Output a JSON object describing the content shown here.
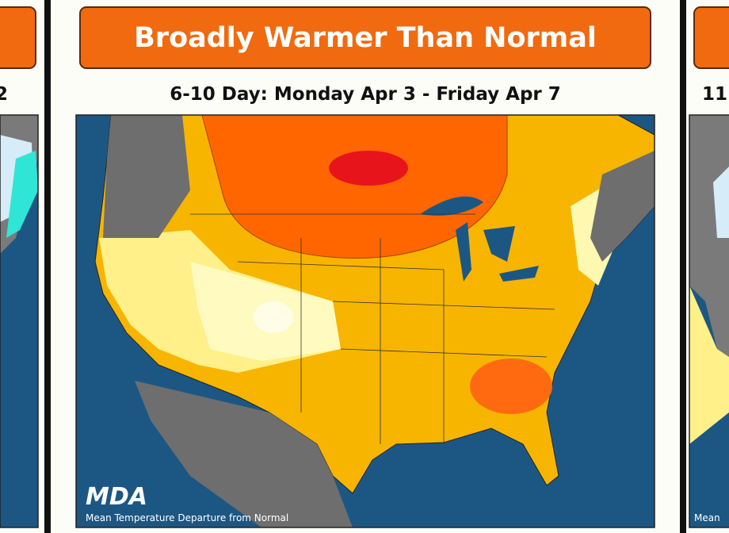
{
  "panels": [
    {
      "period": "2"
    },
    {
      "headline": "Broadly Warmer Than Normal",
      "period": "6-10 Day: Monday Apr 3 - Friday Apr 7",
      "logo": "MDA",
      "caption": "Mean Temperature Departure from Normal"
    },
    {
      "period": "11",
      "caption": "Mean"
    }
  ]
}
